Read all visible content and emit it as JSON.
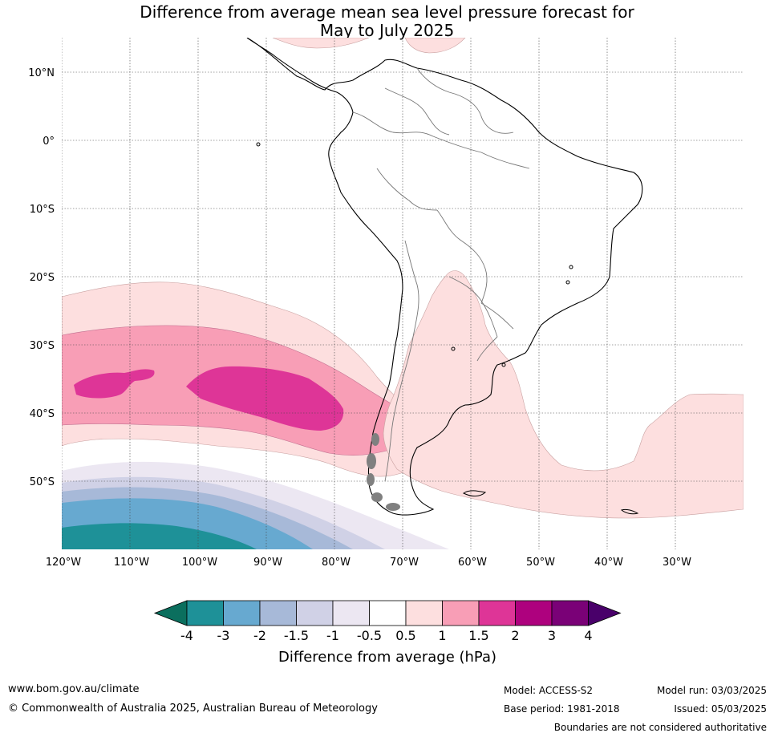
{
  "title": {
    "line1": "Difference from average mean sea level pressure forecast for",
    "line2": "May to July 2025"
  },
  "map": {
    "lat_labels": [
      "10°N",
      "0°",
      "10°S",
      "20°S",
      "30°S",
      "40°S",
      "50°S"
    ],
    "lon_labels": [
      "120°W",
      "110°W",
      "100°W",
      "90°W",
      "80°W",
      "70°W",
      "60°W",
      "50°W",
      "40°W",
      "30°W"
    ]
  },
  "legend": {
    "title": "Difference from average (hPa)",
    "tick_labels": [
      "-4",
      "-3",
      "-2",
      "-1.5",
      "-1",
      "-0.5",
      "0.5",
      "1",
      "1.5",
      "2",
      "3",
      "4"
    ],
    "colors": [
      "#0b6f5e",
      "#1e9198",
      "#67a9d0",
      "#a7b9d8",
      "#d0d1e6",
      "#ece7f2",
      "#ffffff",
      "#fddfdf",
      "#f89eb6",
      "#de3597",
      "#ae017e",
      "#7a0177",
      "#49006a"
    ]
  },
  "footer": {
    "url": "www.bom.gov.au/climate",
    "copyright": "© Commonwealth of Australia 2025, Australian Bureau of Meteorology",
    "model": "Model: ACCESS-S2",
    "base_period": "Base period: 1981-2018",
    "model_run": "Model run: 03/03/2025",
    "issued": "Issued: 05/03/2025",
    "disclaimer": "Boundaries are not considered authoritative"
  }
}
